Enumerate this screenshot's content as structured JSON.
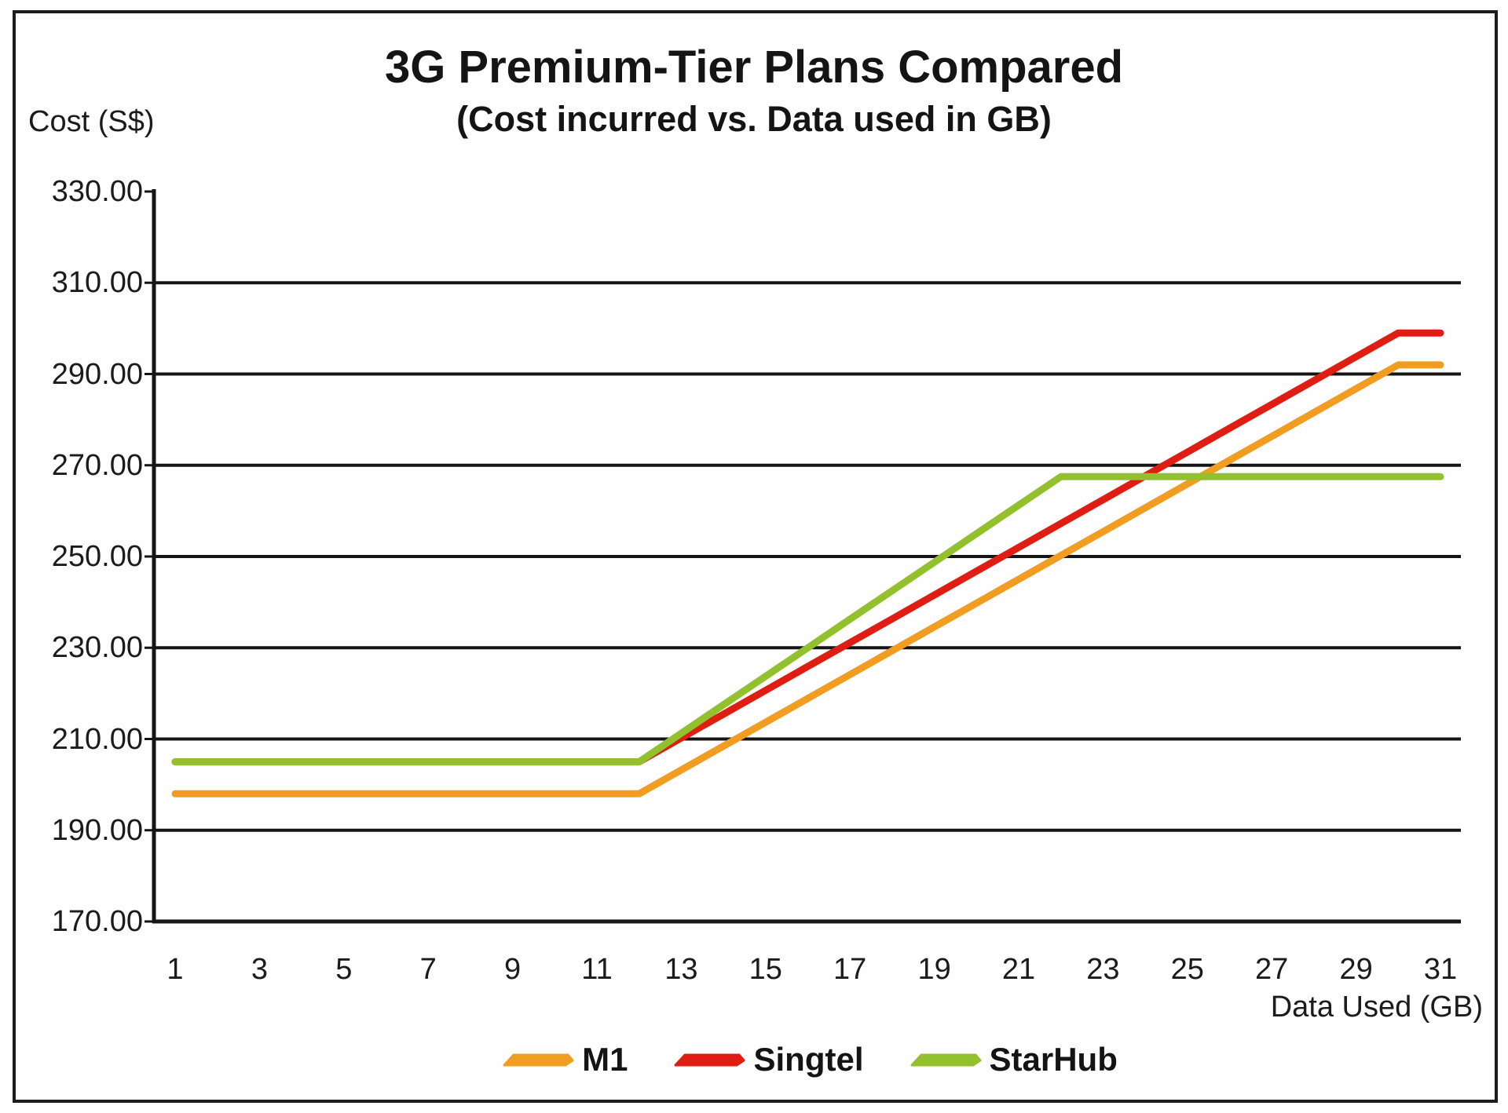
{
  "chart_data": {
    "type": "line",
    "title": "3G Premium-Tier Plans Compared",
    "subtitle": "(Cost incurred vs. Data used in GB)",
    "ylabel": "Cost (S$)",
    "xlabel": "Data Used (GB)",
    "ylim": [
      170,
      330
    ],
    "xlim": [
      0.5,
      31.5
    ],
    "grid": "horizontal",
    "legend_position": "bottom-center",
    "y_tick_labels": [
      "330.00",
      "310.00",
      "290.00",
      "270.00",
      "250.00",
      "230.00",
      "210.00",
      "190.00",
      "170.00"
    ],
    "y_tick_values": [
      330,
      310,
      290,
      270,
      250,
      230,
      210,
      190,
      170
    ],
    "gridline_values": [
      310,
      290,
      270,
      250,
      230,
      210,
      190
    ],
    "x_tick_labels": [
      "1",
      "3",
      "5",
      "7",
      "9",
      "11",
      "13",
      "15",
      "17",
      "19",
      "21",
      "23",
      "25",
      "27",
      "29",
      "31"
    ],
    "x_tick_values": [
      1,
      3,
      5,
      7,
      9,
      11,
      13,
      15,
      17,
      19,
      21,
      23,
      25,
      27,
      29,
      31
    ],
    "x": [
      1,
      2,
      3,
      4,
      5,
      6,
      7,
      8,
      9,
      10,
      11,
      12,
      13,
      14,
      15,
      16,
      17,
      18,
      19,
      20,
      21,
      22,
      23,
      24,
      25,
      26,
      27,
      28,
      29,
      30,
      31
    ],
    "series": [
      {
        "name": "M1",
        "color": "#F09D22",
        "values": [
          198,
          198,
          198,
          198,
          198,
          198,
          198,
          198,
          198,
          198,
          198,
          198,
          203.22,
          208.44,
          213.67,
          218.89,
          224.11,
          229.33,
          234.56,
          239.78,
          245,
          250.22,
          255.44,
          260.67,
          265.89,
          271.11,
          276.33,
          281.56,
          286.78,
          292,
          292
        ]
      },
      {
        "name": "Singtel",
        "color": "#E01D12",
        "values": [
          205,
          205,
          205,
          205,
          205,
          205,
          205,
          205,
          205,
          205,
          205,
          205,
          210.22,
          215.44,
          220.67,
          225.89,
          231.11,
          236.33,
          241.56,
          246.78,
          252,
          257.22,
          262.44,
          267.67,
          272.89,
          278.11,
          283.33,
          288.56,
          293.78,
          299,
          299
        ]
      },
      {
        "name": "StarHub",
        "color": "#93C12D",
        "values": [
          205,
          205,
          205,
          205,
          205,
          205,
          205,
          205,
          205,
          205,
          205,
          205,
          211.25,
          217.5,
          223.75,
          230,
          236.25,
          242.5,
          248.75,
          255,
          261.25,
          267.5,
          267.5,
          267.5,
          267.5,
          267.5,
          267.5,
          267.5,
          267.5,
          267.5,
          267.5
        ]
      }
    ],
    "colors": {
      "axis": "#151515",
      "grid": "#151515",
      "text": "#1b1b1b"
    }
  }
}
